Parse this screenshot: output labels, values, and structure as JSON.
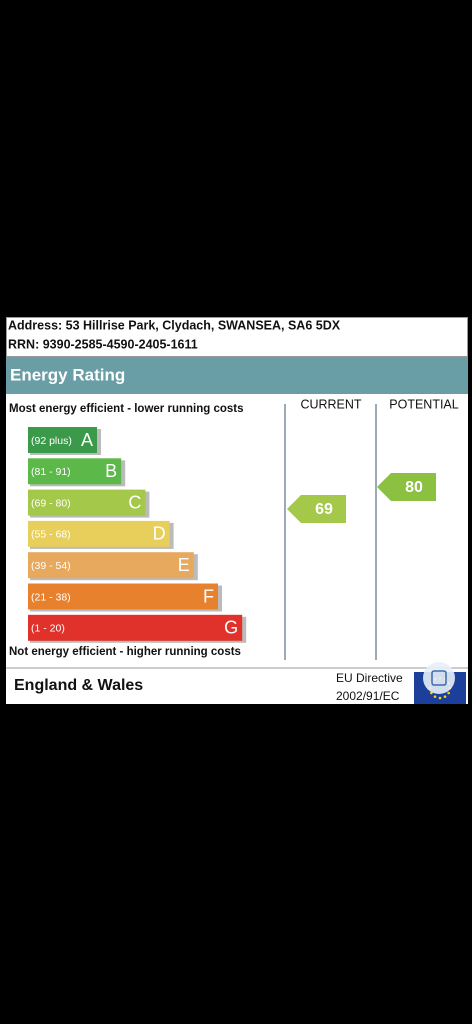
{
  "header": {
    "address": "Address: 53 Hillrise Park, Clydach, SWANSEA, SA6 5DX",
    "rrn": "RRN: 9390-2585-4590-2405-1611"
  },
  "title": "Energy Rating",
  "top_note": "Most energy efficient - lower running costs",
  "columns": [
    "CURRENT",
    "POTENTIAL"
  ],
  "bands": [
    {
      "range": "(92 plus)",
      "letter": "A"
    },
    {
      "range": "(81 - 91)",
      "letter": "B"
    },
    {
      "range": "(69 - 80)",
      "letter": "C"
    },
    {
      "range": "(55 - 68)",
      "letter": "D"
    },
    {
      "range": "(39 - 54)",
      "letter": "E"
    },
    {
      "range": "(21 - 38)",
      "letter": "F"
    },
    {
      "range": "(1 - 20)",
      "letter": "G"
    }
  ],
  "current": 69,
  "potential": 80,
  "bottom_note": "Not energy efficient - higher running costs",
  "footer": {
    "region": "England & Wales",
    "directive": [
      "EU Directive",
      "2002/91/EC"
    ]
  }
}
